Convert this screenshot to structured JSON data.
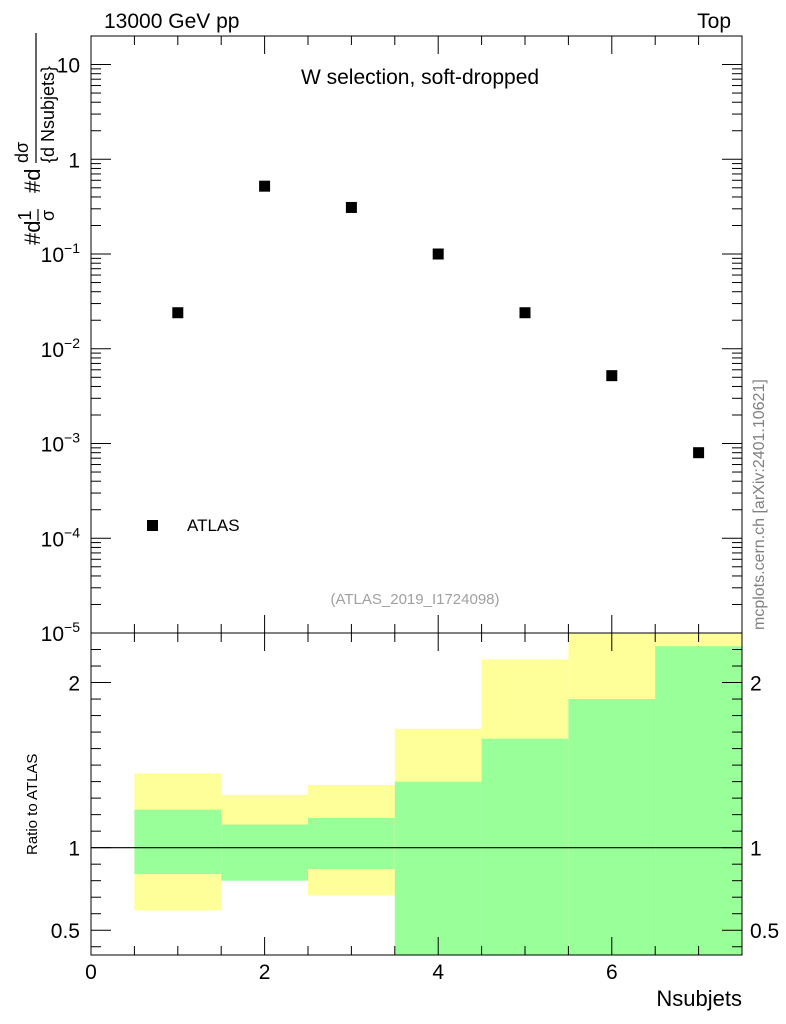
{
  "header": {
    "left": "13000 GeV pp",
    "right": "Top"
  },
  "side_label": "mcplots.cern.ch [arXiv:2401.10621]",
  "watermark": "(ATLAS_2019_I1724098)",
  "legend": {
    "label": "ATLAS"
  },
  "colors": {
    "marker": "#000000",
    "band_outer": "#ffff99",
    "band_inner": "#99ff99",
    "axis": "#000000"
  },
  "chart_data": [
    {
      "type": "scatter",
      "title": "W selection, soft-dropped",
      "ylabel": "#d1σ #d dσ{d Nsubjets}",
      "ylabel_parts": [
        "#d",
        "1",
        "σ",
        "#d",
        "dσ",
        "{d Nsubjets}"
      ],
      "yscale": "log",
      "ylim": [
        1e-05,
        20
      ],
      "xlim": [
        0,
        7.5
      ],
      "y_tick_labels": [
        {
          "value": 10,
          "base": "10",
          "exp": ""
        },
        {
          "value": 1,
          "base": "1",
          "exp": ""
        },
        {
          "value": 0.1,
          "base": "10",
          "exp": "−1"
        },
        {
          "value": 0.01,
          "base": "10",
          "exp": "−2"
        },
        {
          "value": 0.001,
          "base": "10",
          "exp": "−3"
        },
        {
          "value": 0.0001,
          "base": "10",
          "exp": "−4"
        },
        {
          "value": 1e-05,
          "base": "10",
          "exp": "−5"
        }
      ],
      "series": [
        {
          "name": "ATLAS",
          "x": [
            1,
            2,
            3,
            4,
            5,
            6,
            7
          ],
          "values": [
            0.024,
            0.52,
            0.31,
            0.1,
            0.024,
            0.0052,
            0.0008
          ]
        }
      ]
    },
    {
      "type": "area",
      "ylabel": "Ratio to ATLAS",
      "xlabel": "Nsubjets",
      "xlim": [
        0,
        7.5
      ],
      "ylim": [
        0.35,
        2.3
      ],
      "x_ticks": [
        0,
        2,
        4,
        6
      ],
      "x_tick_labels": [
        "0",
        "2",
        "4",
        "6"
      ],
      "y_ticks": [
        0.5,
        1,
        2
      ],
      "y_tick_labels": [
        "0.5",
        "1",
        "2"
      ],
      "reference_line": 1,
      "bins": [
        {
          "lo": 0.5,
          "hi": 1.5,
          "inner": [
            0.84,
            1.23
          ],
          "outer": [
            0.62,
            1.45
          ]
        },
        {
          "lo": 1.5,
          "hi": 2.5,
          "inner": [
            0.8,
            1.14
          ],
          "outer": [
            0.9,
            1.32
          ]
        },
        {
          "lo": 2.5,
          "hi": 3.5,
          "inner": [
            0.87,
            1.18
          ],
          "outer": [
            0.71,
            1.38
          ]
        },
        {
          "lo": 3.5,
          "hi": 4.5,
          "inner": [
            0.35,
            1.4
          ],
          "outer": [
            0.35,
            1.72
          ]
        },
        {
          "lo": 4.5,
          "hi": 5.5,
          "inner": [
            0.35,
            1.66
          ],
          "outer": [
            0.35,
            2.14
          ]
        },
        {
          "lo": 5.5,
          "hi": 6.5,
          "inner": [
            0.35,
            1.9
          ],
          "outer": [
            0.35,
            2.3
          ]
        },
        {
          "lo": 6.5,
          "hi": 7.5,
          "inner": [
            0.35,
            2.22
          ],
          "outer": [
            0.35,
            2.3
          ]
        }
      ]
    }
  ]
}
